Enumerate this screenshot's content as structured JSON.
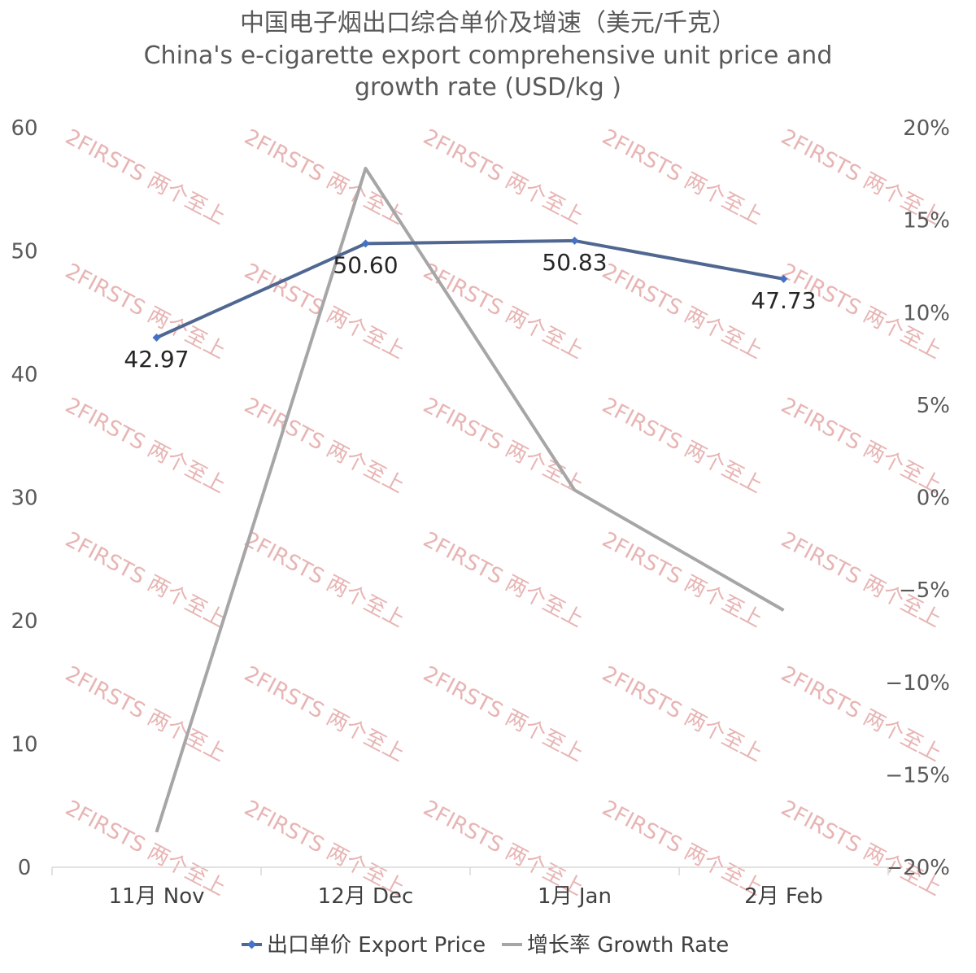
{
  "chart_data": {
    "type": "line",
    "title_cn": "中国电子烟出口综合单价及增速（美元/千克）",
    "title_en_line1": "China's e-cigarette export comprehensive unit price and",
    "title_en_line2": "growth rate (USD/kg )",
    "categories": [
      "11月 Nov",
      "12月 Dec",
      "1月 Jan",
      "2月 Feb"
    ],
    "y_left": {
      "min": 0,
      "max": 60,
      "step": 10,
      "ticks": [
        "0",
        "10",
        "20",
        "30",
        "40",
        "50",
        "60"
      ]
    },
    "y_right": {
      "min": -20,
      "max": 20,
      "step": 5,
      "ticks": [
        "−20%",
        "−15%",
        "−10%",
        "−5%",
        "0%",
        "5%",
        "10%",
        "15%",
        "20%"
      ]
    },
    "series": [
      {
        "name": "出口单价 Export Price",
        "axis": "left",
        "values": [
          42.97,
          50.6,
          50.83,
          47.73
        ],
        "labels": [
          "42.97",
          "50.60",
          "50.83",
          "47.73"
        ],
        "color": "#4f6791",
        "marker_color": "#4472c4"
      },
      {
        "name": "增长率 Growth Rate",
        "axis": "right",
        "values": [
          -18.1,
          17.8,
          0.4,
          -6.1
        ],
        "color": "#a6a6a6"
      }
    ],
    "grid": false,
    "legend": "bottom",
    "watermark": "2FIRSTS 两个至上"
  }
}
